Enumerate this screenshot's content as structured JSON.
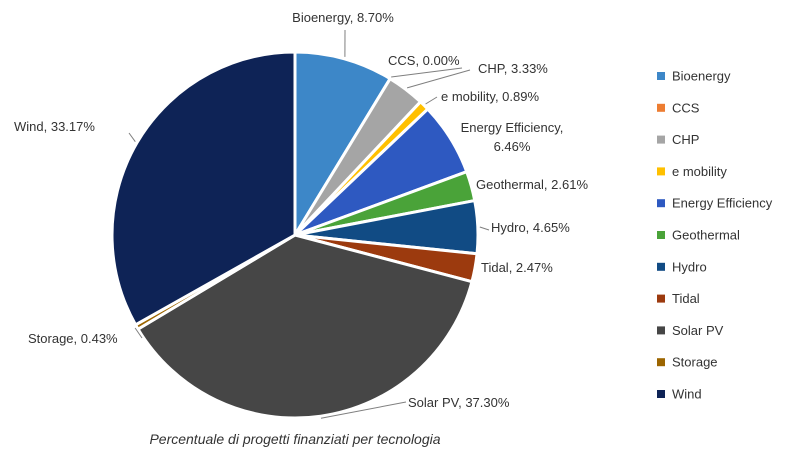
{
  "chart_data": {
    "type": "pie",
    "title": "",
    "caption": "Percentuale di progetti finanziati per tecnologia",
    "legend_position": "right",
    "slices": [
      {
        "label": "Bioenergy",
        "value": 8.7,
        "display": "Bioenergy, 8.70%",
        "color": "#3d87c8"
      },
      {
        "label": "CCS",
        "value": 0.0,
        "display": "CCS, 0.00%",
        "color": "#ed7d31"
      },
      {
        "label": "CHP",
        "value": 3.33,
        "display": "CHP, 3.33%",
        "color": "#a5a5a5"
      },
      {
        "label": "e mobility",
        "value": 0.89,
        "display": "e mobility, 0.89%",
        "color": "#ffc000"
      },
      {
        "label": "Energy Efficiency",
        "value": 6.46,
        "display": [
          "Energy Efficiency,",
          "6.46%"
        ],
        "color": "#2e59c1"
      },
      {
        "label": "Geothermal",
        "value": 2.61,
        "display": "Geothermal, 2.61%",
        "color": "#4aa339"
      },
      {
        "label": "Hydro",
        "value": 4.65,
        "display": "Hydro, 4.65%",
        "color": "#114b84"
      },
      {
        "label": "Tidal",
        "value": 2.47,
        "display": "Tidal, 2.47%",
        "color": "#9c3a0e"
      },
      {
        "label": "Solar PV",
        "value": 37.3,
        "display": "Solar PV, 37.30%",
        "color": "#464646"
      },
      {
        "label": "Storage",
        "value": 0.43,
        "display": "Storage, 0.43%",
        "color": "#9c6500"
      },
      {
        "label": "Wind",
        "value": 33.17,
        "display": "Wind, 33.17%",
        "color": "#0e2356"
      }
    ]
  }
}
